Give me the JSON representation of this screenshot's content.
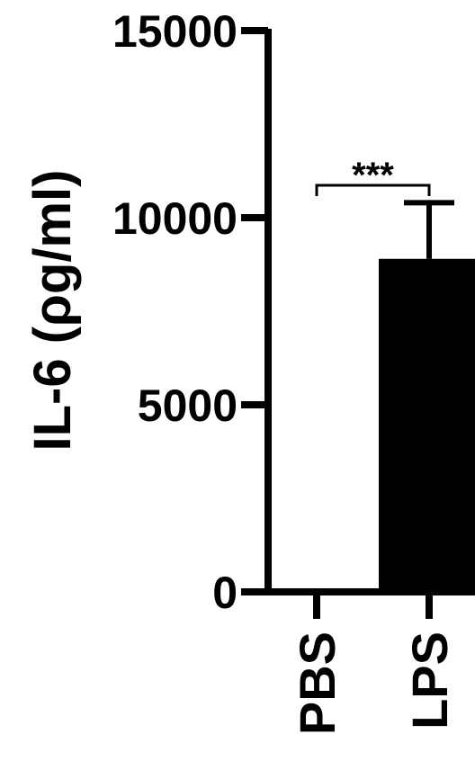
{
  "chart_data": {
    "type": "bar",
    "categories": [
      "PBS",
      "LPS"
    ],
    "values": [
      0,
      8900
    ],
    "errors": [
      0,
      1500
    ],
    "ylabel": "IL-6 (ρg/ml)",
    "ylim": [
      0,
      15000
    ],
    "yticks": [
      0,
      5000,
      10000,
      15000
    ],
    "bar_colors": [
      "#000000",
      "#000000"
    ],
    "significance": {
      "between": [
        "PBS",
        "LPS"
      ],
      "label": "***"
    },
    "grid": false,
    "legend": "none"
  }
}
